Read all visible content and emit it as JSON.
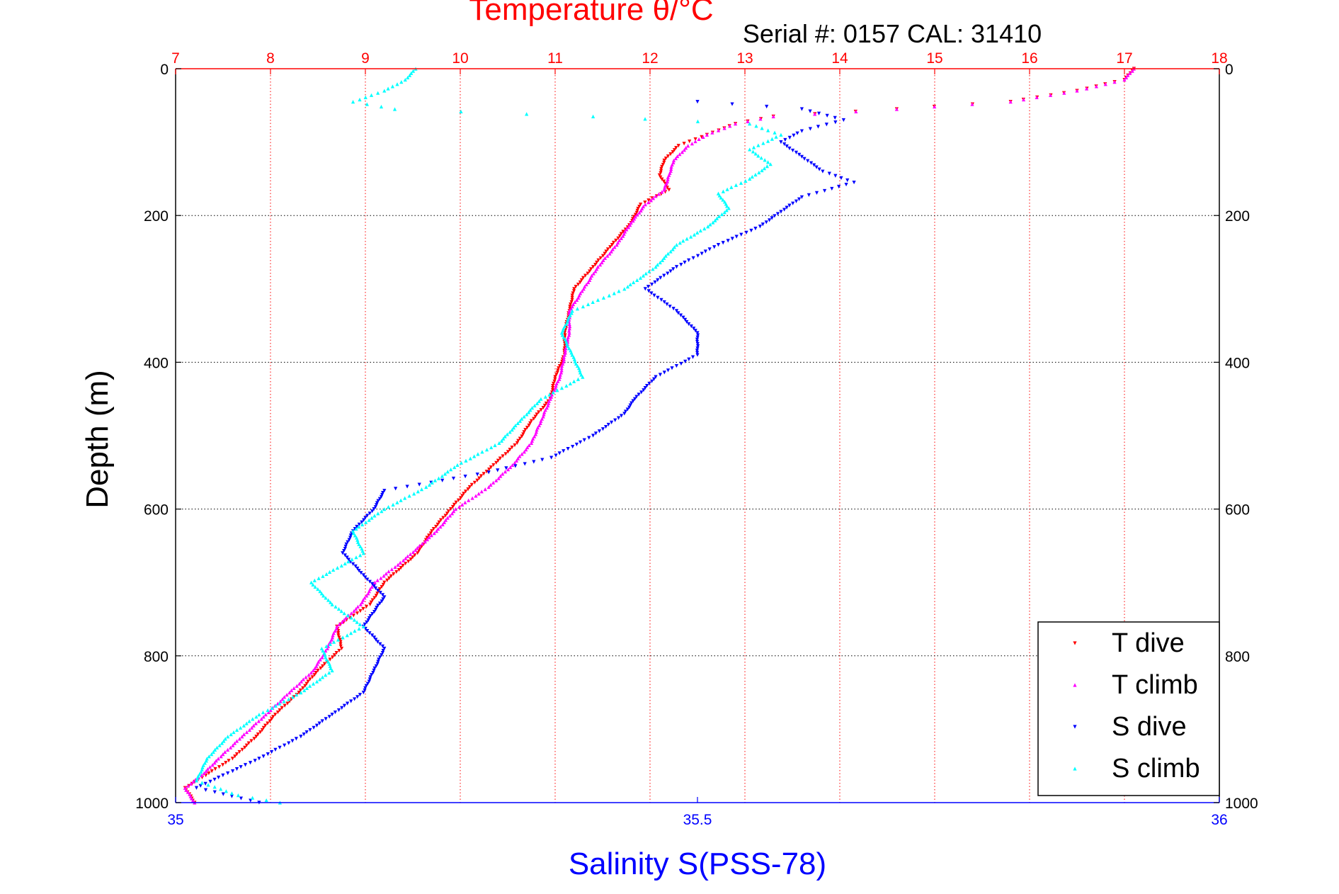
{
  "chart_data": {
    "type": "scatter",
    "title": "Temperature θ/°C",
    "subtitle": "Serial #: 0157  CAL: 31410",
    "xlabel_top": "Temperature θ/°C",
    "xlabel_bottom": "Salinity S(PSS-78)",
    "ylabel": "Depth (m)",
    "x_top": {
      "range": [
        7,
        18
      ],
      "ticks": [
        "7",
        "8",
        "9",
        "10",
        "11",
        "12",
        "13",
        "14",
        "15",
        "16",
        "17",
        "18"
      ],
      "color": "#ff0000"
    },
    "x_bottom": {
      "range": [
        35,
        36
      ],
      "ticks": [
        "35",
        "35.5",
        "36"
      ],
      "color": "#0000ff"
    },
    "y": {
      "range": [
        0,
        1000
      ],
      "reversed": true,
      "ticks": [
        "0",
        "200",
        "400",
        "600",
        "800",
        "1000"
      ]
    },
    "grid": true,
    "legend_placement": "bottom-right",
    "series": [
      {
        "name": "T dive",
        "axis": "top",
        "color": "#ff0000",
        "marker": "triangle-down",
        "points": [
          [
            17.1,
            0
          ],
          [
            17.0,
            15
          ],
          [
            16.5,
            30
          ],
          [
            15.8,
            45
          ],
          [
            14.6,
            55
          ],
          [
            13.3,
            65
          ],
          [
            12.9,
            75
          ],
          [
            12.6,
            90
          ],
          [
            12.3,
            105
          ],
          [
            12.15,
            125
          ],
          [
            12.1,
            145
          ],
          [
            12.2,
            165
          ],
          [
            11.9,
            185
          ],
          [
            11.8,
            210
          ],
          [
            11.6,
            240
          ],
          [
            11.4,
            270
          ],
          [
            11.2,
            300
          ],
          [
            11.15,
            330
          ],
          [
            11.1,
            360
          ],
          [
            11.1,
            390
          ],
          [
            11.0,
            420
          ],
          [
            10.95,
            450
          ],
          [
            10.75,
            480
          ],
          [
            10.6,
            510
          ],
          [
            10.35,
            540
          ],
          [
            10.1,
            570
          ],
          [
            9.9,
            600
          ],
          [
            9.7,
            630
          ],
          [
            9.55,
            660
          ],
          [
            9.2,
            700
          ],
          [
            9.05,
            730
          ],
          [
            8.7,
            760
          ],
          [
            8.75,
            790
          ],
          [
            8.5,
            820
          ],
          [
            8.3,
            850
          ],
          [
            8.05,
            880
          ],
          [
            7.85,
            910
          ],
          [
            7.6,
            940
          ],
          [
            7.35,
            960
          ],
          [
            7.1,
            980
          ],
          [
            7.2,
            1000
          ]
        ]
      },
      {
        "name": "T climb",
        "axis": "top",
        "color": "#ff00ff",
        "marker": "triangle-up",
        "points": [
          [
            17.1,
            0
          ],
          [
            17.0,
            15
          ],
          [
            16.5,
            30
          ],
          [
            15.8,
            45
          ],
          [
            14.6,
            55
          ],
          [
            13.3,
            65
          ],
          [
            12.9,
            75
          ],
          [
            12.6,
            90
          ],
          [
            12.4,
            105
          ],
          [
            12.25,
            125
          ],
          [
            12.2,
            145
          ],
          [
            12.15,
            165
          ],
          [
            11.95,
            185
          ],
          [
            11.8,
            210
          ],
          [
            11.65,
            240
          ],
          [
            11.45,
            270
          ],
          [
            11.3,
            300
          ],
          [
            11.15,
            330
          ],
          [
            11.15,
            360
          ],
          [
            11.1,
            390
          ],
          [
            11.05,
            420
          ],
          [
            10.95,
            450
          ],
          [
            10.85,
            480
          ],
          [
            10.75,
            510
          ],
          [
            10.55,
            540
          ],
          [
            10.3,
            570
          ],
          [
            9.95,
            600
          ],
          [
            9.75,
            630
          ],
          [
            9.4,
            670
          ],
          [
            9.1,
            700
          ],
          [
            8.95,
            730
          ],
          [
            8.7,
            760
          ],
          [
            8.6,
            790
          ],
          [
            8.45,
            820
          ],
          [
            8.2,
            850
          ],
          [
            7.95,
            880
          ],
          [
            7.7,
            910
          ],
          [
            7.45,
            940
          ],
          [
            7.3,
            960
          ],
          [
            7.1,
            980
          ],
          [
            7.2,
            1000
          ]
        ]
      },
      {
        "name": "S dive",
        "axis": "bottom",
        "color": "#0000ff",
        "marker": "triangle-down",
        "points": [
          [
            35.5,
            45
          ],
          [
            35.6,
            55
          ],
          [
            35.64,
            70
          ],
          [
            35.6,
            85
          ],
          [
            35.58,
            100
          ],
          [
            35.6,
            120
          ],
          [
            35.62,
            140
          ],
          [
            35.65,
            155
          ],
          [
            35.6,
            175
          ],
          [
            35.58,
            195
          ],
          [
            35.56,
            215
          ],
          [
            35.52,
            240
          ],
          [
            35.48,
            270
          ],
          [
            35.45,
            300
          ],
          [
            35.48,
            330
          ],
          [
            35.5,
            360
          ],
          [
            35.5,
            390
          ],
          [
            35.46,
            420
          ],
          [
            35.44,
            450
          ],
          [
            35.43,
            470
          ],
          [
            35.4,
            500
          ],
          [
            35.36,
            530
          ],
          [
            35.3,
            550
          ],
          [
            35.2,
            575
          ],
          [
            35.19,
            600
          ],
          [
            35.17,
            630
          ],
          [
            35.16,
            660
          ],
          [
            35.18,
            690
          ],
          [
            35.2,
            720
          ],
          [
            35.18,
            760
          ],
          [
            35.2,
            790
          ],
          [
            35.19,
            820
          ],
          [
            35.18,
            850
          ],
          [
            35.15,
            880
          ],
          [
            35.12,
            910
          ],
          [
            35.08,
            940
          ],
          [
            35.05,
            960
          ],
          [
            35.02,
            980
          ],
          [
            35.08,
            1000
          ]
        ]
      },
      {
        "name": "S climb",
        "axis": "bottom",
        "color": "#00ffff",
        "marker": "triangle-up",
        "points": [
          [
            35.23,
            0
          ],
          [
            35.22,
            15
          ],
          [
            35.2,
            30
          ],
          [
            35.17,
            45
          ],
          [
            35.21,
            55
          ],
          [
            35.4,
            65
          ],
          [
            35.55,
            75
          ],
          [
            35.58,
            90
          ],
          [
            35.55,
            110
          ],
          [
            35.57,
            130
          ],
          [
            35.55,
            150
          ],
          [
            35.52,
            170
          ],
          [
            35.53,
            190
          ],
          [
            35.51,
            215
          ],
          [
            35.48,
            240
          ],
          [
            35.46,
            270
          ],
          [
            35.43,
            300
          ],
          [
            35.38,
            330
          ],
          [
            35.37,
            360
          ],
          [
            35.38,
            390
          ],
          [
            35.39,
            420
          ],
          [
            35.35,
            450
          ],
          [
            35.33,
            480
          ],
          [
            35.31,
            510
          ],
          [
            35.27,
            540
          ],
          [
            35.24,
            570
          ],
          [
            35.2,
            600
          ],
          [
            35.17,
            630
          ],
          [
            35.18,
            660
          ],
          [
            35.13,
            700
          ],
          [
            35.15,
            730
          ],
          [
            35.18,
            760
          ],
          [
            35.14,
            790
          ],
          [
            35.15,
            820
          ],
          [
            35.12,
            850
          ],
          [
            35.08,
            880
          ],
          [
            35.05,
            910
          ],
          [
            35.03,
            940
          ],
          [
            35.02,
            970
          ],
          [
            35.06,
            990
          ],
          [
            35.1,
            1000
          ]
        ]
      }
    ]
  }
}
